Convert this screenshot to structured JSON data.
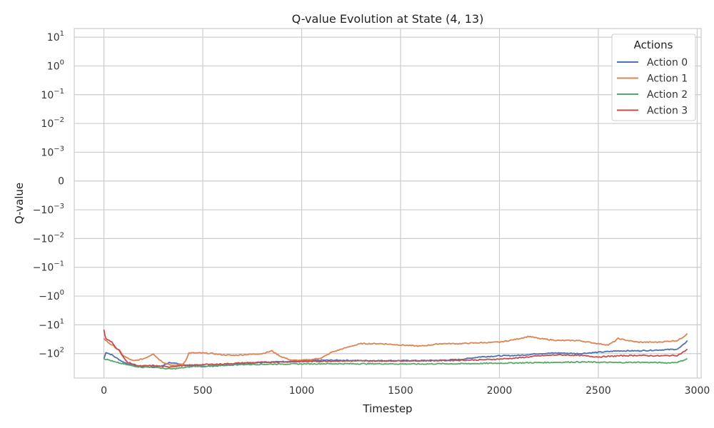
{
  "chart_data": {
    "type": "line",
    "title": "Q-value Evolution at State (4, 13)",
    "xlabel": "Timestep",
    "ylabel": "Q-value",
    "xlim": [
      -150,
      3020
    ],
    "x_ticks": [
      0,
      500,
      1000,
      1500,
      2000,
      2500,
      3000
    ],
    "y_scale": "symlog",
    "y_ticks": [
      {
        "label": "10",
        "exp": "1"
      },
      {
        "label": "10",
        "exp": "0"
      },
      {
        "label": "10",
        "exp": "−1"
      },
      {
        "label": "10",
        "exp": "−2"
      },
      {
        "label": "10",
        "exp": "−3"
      },
      {
        "label": "0",
        "exp": ""
      },
      {
        "label": "−10",
        "exp": "−3"
      },
      {
        "label": "−10",
        "exp": "−2"
      },
      {
        "label": "−10",
        "exp": "−1"
      },
      {
        "label": "−10",
        "exp": "0"
      },
      {
        "label": "−10",
        "exp": "1"
      },
      {
        "label": "−10",
        "exp": "2"
      }
    ],
    "grid": true,
    "legend": {
      "title": "Actions",
      "position": "top-right"
    },
    "series": [
      {
        "name": "Action 0",
        "color": "#4c72b0",
        "x": [
          0,
          10,
          40,
          70,
          100,
          150,
          200,
          250,
          300,
          330,
          380,
          450,
          500,
          550,
          600,
          650,
          700,
          800,
          900,
          1000,
          1100,
          1200,
          1300,
          1400,
          1500,
          1600,
          1700,
          1800,
          1900,
          2000,
          2100,
          2200,
          2300,
          2400,
          2500,
          2600,
          2700,
          2800,
          2900,
          2950
        ],
        "y": [
          -150,
          -90,
          -110,
          -150,
          -200,
          -260,
          -280,
          -300,
          -260,
          -200,
          -230,
          -270,
          -280,
          -270,
          -260,
          -240,
          -220,
          -200,
          -190,
          -180,
          -170,
          -170,
          -175,
          -175,
          -175,
          -175,
          -170,
          -160,
          -130,
          -120,
          -115,
          -100,
          -95,
          -100,
          -90,
          -80,
          -80,
          -75,
          -70,
          -35
        ]
      },
      {
        "name": "Action 1",
        "color": "#dd8452",
        "x": [
          0,
          20,
          50,
          80,
          100,
          150,
          200,
          250,
          300,
          350,
          400,
          430,
          500,
          550,
          600,
          650,
          700,
          750,
          800,
          850,
          900,
          950,
          1000,
          1050,
          1100,
          1150,
          1200,
          1250,
          1300,
          1400,
          1500,
          1600,
          1700,
          1800,
          1900,
          2000,
          2100,
          2150,
          2200,
          2300,
          2400,
          2500,
          2550,
          2600,
          2650,
          2700,
          2800,
          2900,
          2950
        ],
        "y": [
          -30,
          -40,
          -55,
          -80,
          -120,
          -180,
          -150,
          -100,
          -200,
          -260,
          -230,
          -95,
          -95,
          -100,
          -110,
          -115,
          -110,
          -105,
          -100,
          -80,
          -130,
          -170,
          -170,
          -160,
          -140,
          -90,
          -70,
          -55,
          -45,
          -45,
          -50,
          -55,
          -45,
          -45,
          -42,
          -40,
          -30,
          -25,
          -30,
          -35,
          -35,
          -45,
          -50,
          -30,
          -35,
          -40,
          -40,
          -35,
          -20
        ]
      },
      {
        "name": "Action 2",
        "color": "#55a868",
        "x": [
          0,
          30,
          60,
          100,
          150,
          200,
          250,
          300,
          350,
          400,
          450,
          500,
          550,
          600,
          700,
          800,
          900,
          1000,
          1100,
          1200,
          1300,
          1400,
          1500,
          1600,
          1700,
          1800,
          1900,
          2000,
          2100,
          2200,
          2300,
          2400,
          2500,
          2600,
          2700,
          2800,
          2850,
          2900,
          2950
        ],
        "y": [
          -150,
          -170,
          -200,
          -230,
          -270,
          -300,
          -280,
          -330,
          -340,
          -310,
          -280,
          -270,
          -265,
          -255,
          -240,
          -235,
          -230,
          -228,
          -225,
          -225,
          -225,
          -225,
          -228,
          -230,
          -225,
          -225,
          -220,
          -215,
          -210,
          -205,
          -200,
          -195,
          -200,
          -205,
          -200,
          -205,
          -210,
          -200,
          -150
        ]
      },
      {
        "name": "Action 3",
        "color": "#c44e52",
        "x": [
          0,
          10,
          40,
          80,
          120,
          180,
          250,
          320,
          400,
          500,
          600,
          700,
          800,
          900,
          1000,
          1100,
          1200,
          1300,
          1400,
          1500,
          1600,
          1700,
          1800,
          1900,
          2000,
          2100,
          2200,
          2300,
          2400,
          2500,
          2600,
          2700,
          2800,
          2900,
          2950
        ],
        "y": [
          -15,
          -30,
          -40,
          -80,
          -200,
          -270,
          -260,
          -290,
          -260,
          -240,
          -230,
          -210,
          -200,
          -195,
          -190,
          -185,
          -180,
          -180,
          -180,
          -178,
          -178,
          -175,
          -170,
          -165,
          -155,
          -140,
          -120,
          -110,
          -115,
          -130,
          -120,
          -115,
          -120,
          -115,
          -70
        ]
      }
    ]
  }
}
